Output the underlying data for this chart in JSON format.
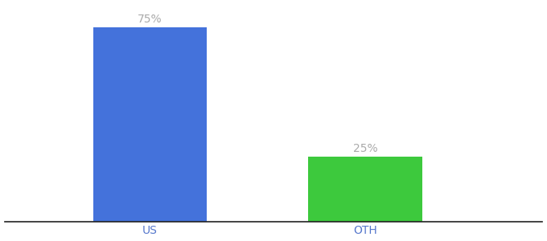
{
  "categories": [
    "US",
    "OTH"
  ],
  "values": [
    75,
    25
  ],
  "bar_colors": [
    "#4472DB",
    "#3DC93D"
  ],
  "label_texts": [
    "75%",
    "25%"
  ],
  "label_color": "#aaaaaa",
  "label_fontsize": 10,
  "tick_label_color": "#5577cc",
  "tick_fontsize": 10,
  "ylim": [
    0,
    84
  ],
  "background_color": "#ffffff",
  "bar_width": 0.18,
  "bottom_spine_color": "#222222"
}
